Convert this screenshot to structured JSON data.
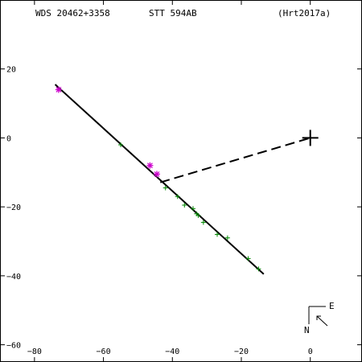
{
  "header": {
    "wds_id": "WDS 20462+3358",
    "pair": "STT 594AB",
    "reference": "(Hrt2017a)"
  },
  "compass": {
    "east": "E",
    "north": "N"
  },
  "chart_data": {
    "type": "scatter",
    "x_tick_labels": [
      "−80",
      "−60",
      "−40",
      "−20",
      "0"
    ],
    "y_tick_labels": [
      "20",
      "0",
      "−20",
      "−40",
      "−60"
    ],
    "xlim": [
      -90,
      15
    ],
    "ylim": [
      -65,
      40
    ],
    "x_ticks": [
      -80,
      -60,
      -40,
      -20,
      0
    ],
    "y_ticks": [
      20,
      0,
      -20,
      -40,
      -60
    ],
    "x_direction": "reversed",
    "grid": false,
    "primary": {
      "x": 0,
      "y": 0,
      "marker": "plus",
      "color": "#000000"
    },
    "orbit_line": {
      "x1": -74,
      "y1": 15.5,
      "x2": -13.5,
      "y2": -39.5,
      "color": "#000000"
    },
    "residual_line": {
      "x1": -43.5,
      "y1": -12.9,
      "x2": 0,
      "y2": 0,
      "style": "dashed",
      "color": "#000000"
    },
    "series": [
      {
        "marker": "asterisk",
        "color": "#cc00cc",
        "points": [
          [
            -73,
            14
          ],
          [
            -46.5,
            -8
          ],
          [
            -44.5,
            -10.5
          ]
        ]
      },
      {
        "marker": "plus",
        "color": "#008800",
        "points": [
          [
            -55,
            -2
          ],
          [
            -42,
            -14.5
          ],
          [
            -38.5,
            -17
          ],
          [
            -36.5,
            -19.5
          ],
          [
            -34,
            -20.5
          ],
          [
            -33,
            -22
          ],
          [
            -32.5,
            -22.5
          ],
          [
            -31,
            -24.5
          ],
          [
            -27,
            -28
          ],
          [
            -24,
            -29
          ],
          [
            -18,
            -35
          ],
          [
            -15,
            -38
          ]
        ]
      }
    ]
  }
}
